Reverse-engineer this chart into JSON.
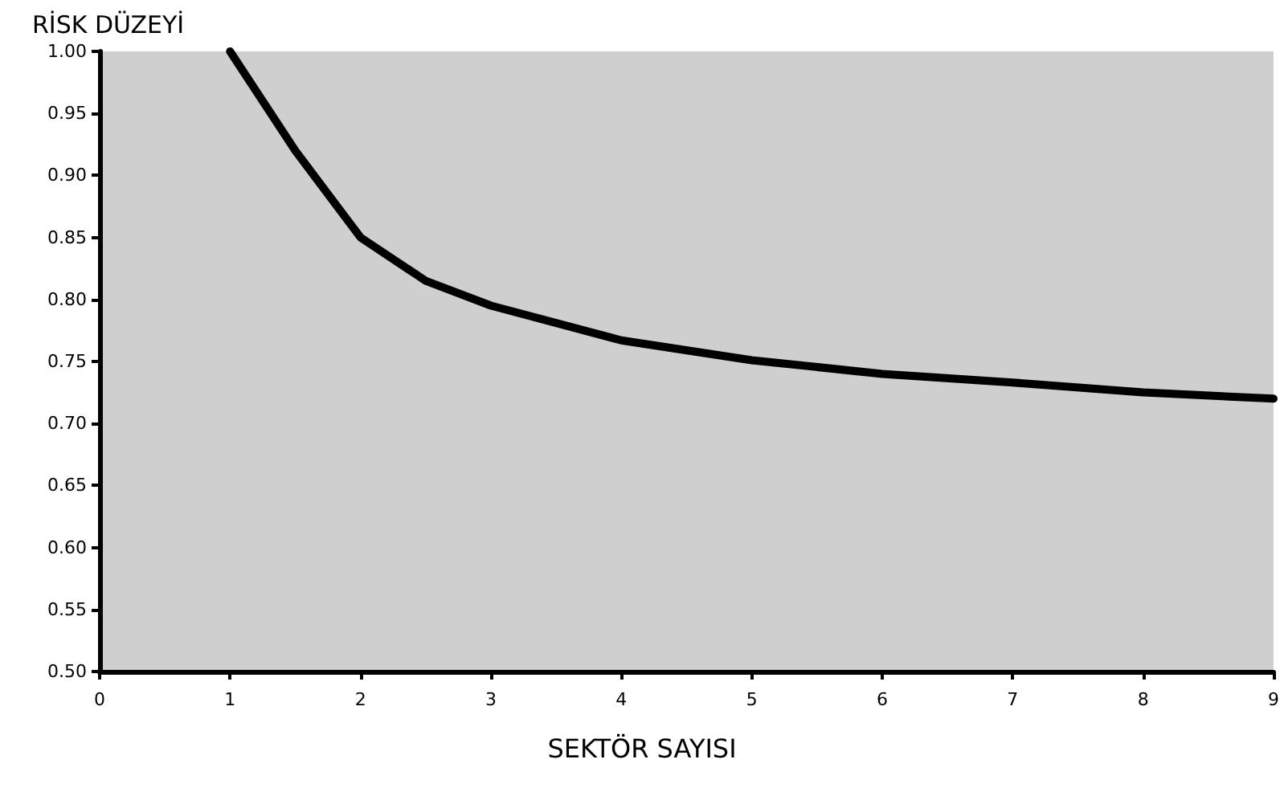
{
  "chart_data": {
    "type": "line",
    "ylabel": "RİSK DÜZEYİ",
    "xlabel": "SEKTÖR SAYISI",
    "x": [
      1,
      1.5,
      2,
      2.5,
      3,
      4,
      5,
      6,
      7,
      8,
      9
    ],
    "series": [
      {
        "color": "#000000",
        "values": [
          1.0,
          0.92,
          0.85,
          0.815,
          0.795,
          0.767,
          0.751,
          0.74,
          0.733,
          0.725,
          0.72
        ]
      }
    ],
    "xlim": [
      0,
      9
    ],
    "xticks": [
      0,
      1,
      2,
      3,
      4,
      5,
      6,
      7,
      8,
      9
    ],
    "ylim": [
      0.5,
      1.0
    ],
    "yticks": [
      {
        "value": 0.5,
        "label": "0.50"
      },
      {
        "value": 0.55,
        "label": "0.55"
      },
      {
        "value": 0.6,
        "label": "0.60"
      },
      {
        "value": 0.65,
        "label": "0.65"
      },
      {
        "value": 0.7,
        "label": "0.70"
      },
      {
        "value": 0.75,
        "label": "0.75"
      },
      {
        "value": 0.8,
        "label": "0.80"
      },
      {
        "value": 0.85,
        "label": "0.85"
      },
      {
        "value": 0.9,
        "label": "0.90"
      },
      {
        "value": 0.95,
        "label": "0.95"
      },
      {
        "value": 1.0,
        "label": "1.00"
      }
    ],
    "grid": false,
    "marker": "none",
    "line_style": "solid"
  }
}
